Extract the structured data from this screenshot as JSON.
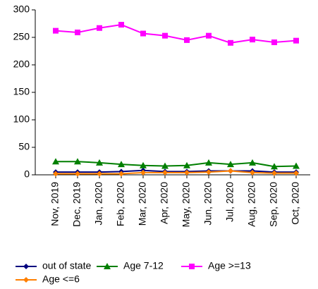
{
  "chart_data": {
    "type": "line",
    "categories": [
      "Nov, 2019",
      "Dec, 2019",
      "Jan, 2020",
      "Feb, 2020",
      "Mar, 2020",
      "Apr, 2020",
      "May, 2020",
      "Jun, 2020",
      "Jul, 2020",
      "Aug, 2020",
      "Sep, 2020",
      "Oct, 2020"
    ],
    "series": [
      {
        "name": "out of state",
        "color": "#00007f",
        "marker": "diamond",
        "values": [
          5,
          5,
          5,
          6,
          8,
          6,
          6,
          7,
          7,
          7,
          5,
          5
        ]
      },
      {
        "name": "Age 7-12",
        "color": "#007f00",
        "marker": "triangle",
        "values": [
          24,
          24,
          22,
          19,
          17,
          16,
          17,
          22,
          19,
          22,
          15,
          16
        ]
      },
      {
        "name": "Age >=13",
        "color": "#ff00ff",
        "marker": "square",
        "values": [
          262,
          259,
          267,
          273,
          257,
          253,
          245,
          253,
          240,
          246,
          241,
          244
        ]
      },
      {
        "name": "Age <=6",
        "color": "#ff7f00",
        "marker": "diamond",
        "values": [
          2,
          2,
          2,
          2,
          4,
          4,
          4,
          5,
          7,
          4,
          3,
          3
        ]
      }
    ],
    "ylim": [
      0,
      300
    ],
    "yticks": [
      0,
      50,
      100,
      150,
      200,
      250,
      300
    ],
    "grid": false
  }
}
